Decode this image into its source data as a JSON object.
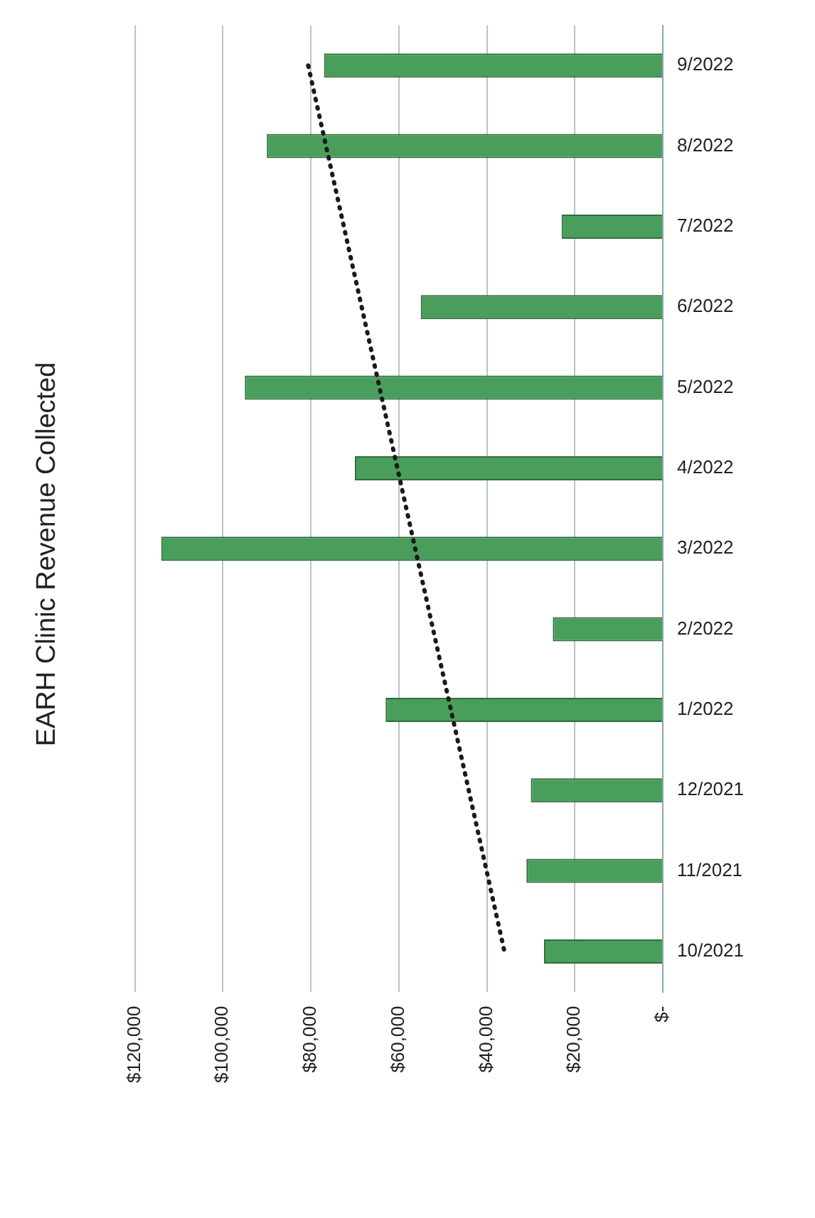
{
  "chart_data": {
    "type": "bar",
    "title": "EARH Clinic Revenue Collected",
    "orientation": "horizontal",
    "categories": [
      "9/2022",
      "8/2022",
      "7/2022",
      "6/2022",
      "5/2022",
      "4/2022",
      "3/2022",
      "2/2022",
      "1/2022",
      "12/2021",
      "11/2021",
      "10/2021"
    ],
    "series": [
      {
        "color": "#4a9e5c",
        "values": [
          77000,
          90000,
          23000,
          55000,
          95000,
          70000,
          114000,
          25000,
          63000,
          30000,
          31000,
          27000
        ]
      },
      {
        "type": "line",
        "color": "#1a1a1a",
        "x": [
          "9/2022",
          "10/2021"
        ],
        "values": [
          80600,
          36000
        ],
        "marker": "none",
        "line_style": "dotted"
      }
    ],
    "xlim": [
      120000,
      0
    ],
    "xticks": [
      {
        "value": 120000,
        "label": "$120,000"
      },
      {
        "value": 100000,
        "label": "$100,000"
      },
      {
        "value": 80000,
        "label": "$80,000"
      },
      {
        "value": 60000,
        "label": "$60,000"
      },
      {
        "value": 40000,
        "label": "$40,000"
      },
      {
        "value": 20000,
        "label": "$20,000"
      },
      {
        "value": 0,
        "label": "$-"
      }
    ],
    "grid": "x"
  }
}
